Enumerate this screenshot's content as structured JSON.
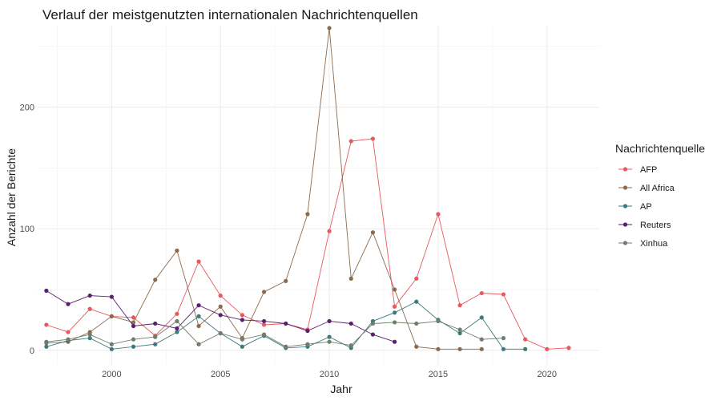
{
  "chart_data": {
    "type": "line",
    "title": "Verlauf der meistgenutzten internationalen Nachrichtenquellen",
    "xlabel": "Jahr",
    "ylabel": "Anzahl der Berichte",
    "xlim": [
      1996.6,
      2022.4
    ],
    "ylim": [
      -12,
      267
    ],
    "x_ticks": [
      2000,
      2005,
      2010,
      2015,
      2020
    ],
    "y_ticks": [
      0,
      100,
      200
    ],
    "grid": true,
    "legend": {
      "title": "Nachrichtenquelle",
      "placement": "right"
    },
    "series": [
      {
        "name": "AFP",
        "color": "#e8585f",
        "x": [
          1997,
          1998,
          1999,
          2000,
          2001,
          2002,
          2003,
          2004,
          2005,
          2006,
          2007,
          2008,
          2009,
          2010,
          2011,
          2012,
          2013,
          2014,
          2015,
          2016,
          2017,
          2018,
          2019,
          2020,
          2021
        ],
        "y": [
          21,
          15,
          34,
          28,
          27,
          12,
          30,
          73,
          45,
          29,
          21,
          22,
          17,
          98,
          172,
          174,
          36,
          59,
          112,
          37,
          47,
          46,
          9,
          1,
          2
        ]
      },
      {
        "name": "All Africa",
        "color": "#8b6b4f",
        "x": [
          1997,
          1998,
          1999,
          2000,
          2001,
          2002,
          2003,
          2004,
          2005,
          2006,
          2007,
          2008,
          2009,
          2010,
          2011,
          2012,
          2013,
          2014,
          2015,
          2016,
          2017
        ],
        "y": [
          6,
          7,
          15,
          28,
          23,
          58,
          82,
          20,
          36,
          10,
          48,
          57,
          112,
          265,
          59,
          97,
          50,
          3,
          1,
          1,
          1
        ]
      },
      {
        "name": "AP",
        "color": "#3d7a7e",
        "x": [
          1997,
          1998,
          1999,
          2000,
          2001,
          2002,
          2003,
          2004,
          2005,
          2006,
          2007,
          2008,
          2009,
          2010,
          2011,
          2012,
          2013,
          2014,
          2015,
          2016,
          2017,
          2018,
          2019
        ],
        "y": [
          3,
          8,
          10,
          1,
          3,
          5,
          15,
          28,
          14,
          3,
          12,
          2,
          3,
          11,
          2,
          24,
          31,
          40,
          25,
          14,
          27,
          1,
          1
        ]
      },
      {
        "name": "Reuters",
        "color": "#5a1f6e",
        "x": [
          1997,
          1998,
          1999,
          2000,
          2001,
          2002,
          2003,
          2004,
          2005,
          2006,
          2007,
          2008,
          2009,
          2010,
          2011,
          2012,
          2013
        ],
        "y": [
          49,
          38,
          45,
          44,
          20,
          22,
          18,
          37,
          29,
          25,
          24,
          22,
          16,
          24,
          22,
          13,
          7
        ]
      },
      {
        "name": "Xinhua",
        "color": "#6f7d6b",
        "x": [
          1997,
          1998,
          1999,
          2000,
          2001,
          2002,
          2003,
          2004,
          2005,
          2006,
          2007,
          2008,
          2009,
          2010,
          2011,
          2012,
          2013,
          2014,
          2015,
          2016,
          2017,
          2018
        ],
        "y": [
          7,
          9,
          13,
          5,
          9,
          11,
          24,
          5,
          14,
          9,
          13,
          3,
          5,
          7,
          4,
          22,
          23,
          22,
          24,
          17,
          9,
          10
        ]
      }
    ]
  }
}
